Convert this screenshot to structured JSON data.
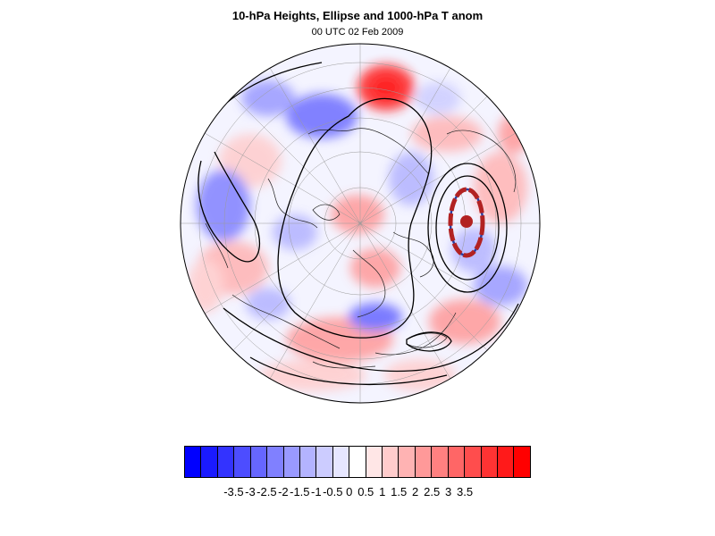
{
  "title": "10-hPa Heights, Ellipse and 1000-hPa T anom",
  "subtitle": "00 UTC 02 Feb 2009",
  "colorbar": {
    "colors": [
      "#0000ff",
      "#1a1aff",
      "#3333ff",
      "#4d4dff",
      "#6666ff",
      "#8080ff",
      "#9999ff",
      "#b3b3ff",
      "#ccccff",
      "#e6e6ff",
      "#ffffff",
      "#ffe6e6",
      "#ffcccc",
      "#ffb3b3",
      "#ff9999",
      "#ff8080",
      "#ff6666",
      "#ff4d4d",
      "#ff3333",
      "#ff1a1a",
      "#ff0000"
    ],
    "labels": [
      "-3.5",
      "-3",
      "-2.5",
      "-2",
      "-1.5",
      "-1",
      "-0.5",
      "0",
      "0.5",
      "1",
      "1.5",
      "2",
      "2.5",
      "3",
      "3.5"
    ]
  },
  "map": {
    "projection": "orthographic, north-polar centred",
    "ellipse_color": "#b22222",
    "contour_color": "#000000"
  }
}
